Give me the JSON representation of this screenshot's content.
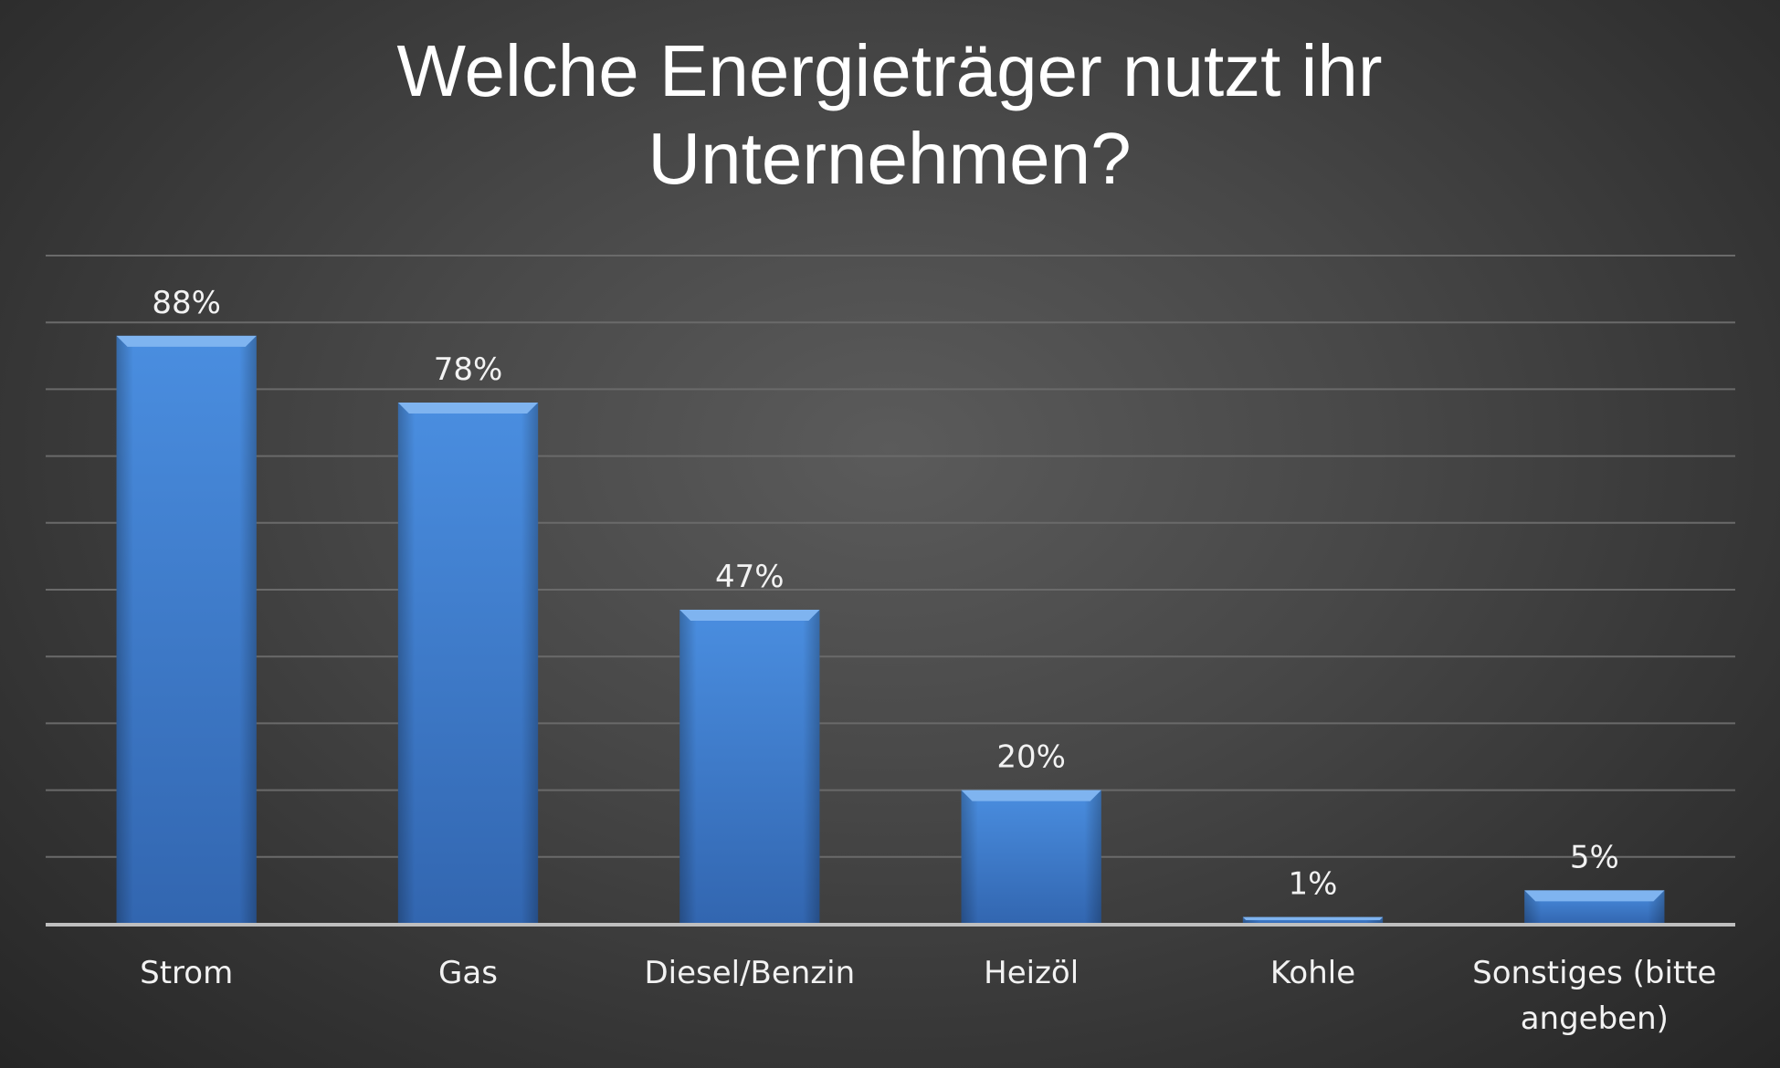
{
  "chart_data": {
    "type": "bar",
    "title": "Welche Energieträger nutzt ihr Unternehmen?",
    "categories": [
      "Strom",
      "Gas",
      "Diesel/Benzin",
      "Heizöl",
      "Kohle",
      "Sonstiges (bitte angeben)"
    ],
    "values": [
      88,
      78,
      47,
      20,
      1,
      5
    ],
    "data_labels": [
      "88%",
      "78%",
      "47%",
      "20%",
      "1%",
      "5%"
    ],
    "ylim": [
      0,
      100
    ],
    "grid": true,
    "legend": "none",
    "bar_color": "#3f7fd0",
    "bar_highlight": "#7fb4f0",
    "gridline_color": "#6a6a6a",
    "axis_color": "#bfbfbf",
    "text_color": "#f2f2f2"
  }
}
